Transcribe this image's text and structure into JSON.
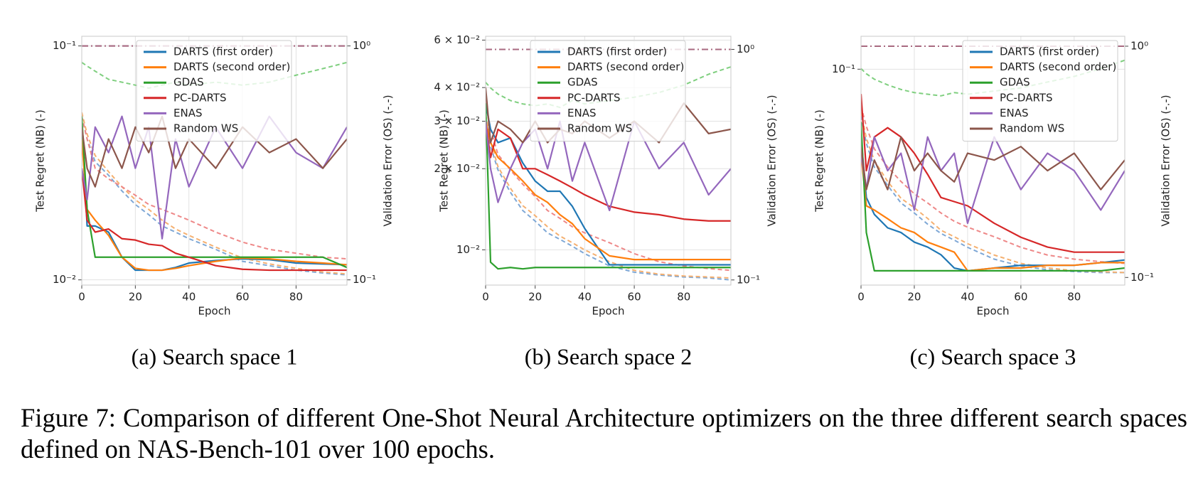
{
  "chart_data": [
    {
      "type": "line",
      "caption": "(a) Search space 1",
      "xlabel": "Epoch",
      "ylabel": "Test Regret (NB) (-)",
      "y2label": "Validation Error (OS) (-.-)",
      "x": [
        0,
        2,
        5,
        10,
        15,
        20,
        25,
        30,
        35,
        40,
        50,
        60,
        70,
        80,
        90,
        99
      ],
      "xlim": [
        0,
        99
      ],
      "xticks": [
        0,
        20,
        40,
        60,
        80
      ],
      "ylim": [
        0.0095,
        0.11
      ],
      "ylog": true,
      "yticks": [
        {
          "value": 0.1,
          "label": "10⁻¹"
        },
        {
          "value": 0.01,
          "label": "10⁻²"
        }
      ],
      "y2lim": [
        0.095,
        1.1
      ],
      "y2log": true,
      "y2ticks": [
        {
          "value": 1,
          "label": "10⁰"
        },
        {
          "value": 0.1,
          "label": "10⁻¹"
        }
      ],
      "grid": true,
      "legend": "upper right",
      "series": [
        {
          "name": "DARTS (first order)",
          "color": "#1f77b4",
          "values": [
            0.045,
            0.017,
            0.017,
            0.016,
            0.0125,
            0.011,
            0.011,
            0.011,
            0.0113,
            0.0118,
            0.0121,
            0.0123,
            0.0122,
            0.0118,
            0.0117,
            0.0116
          ]
        },
        {
          "name": "DARTS (second order)",
          "color": "#ff7f0e",
          "values": [
            0.04,
            0.02,
            0.018,
            0.0155,
            0.0125,
            0.0112,
            0.011,
            0.011,
            0.0112,
            0.0115,
            0.012,
            0.0124,
            0.0123,
            0.012,
            0.0118,
            0.0116
          ]
        },
        {
          "name": "GDAS",
          "color": "#2ca02c",
          "values": [
            0.05,
            0.02,
            0.0125,
            0.0125,
            0.0125,
            0.0125,
            0.0125,
            0.0125,
            0.0125,
            0.0125,
            0.0125,
            0.0125,
            0.0125,
            0.0125,
            0.0125,
            0.0113
          ]
        },
        {
          "name": "PC-DARTS",
          "color": "#d62728",
          "values": [
            0.03,
            0.018,
            0.016,
            0.0165,
            0.015,
            0.0148,
            0.0142,
            0.014,
            0.013,
            0.0125,
            0.0115,
            0.0111,
            0.011,
            0.011,
            0.011,
            0.011
          ]
        },
        {
          "name": "ENAS",
          "color": "#9467bd",
          "values": [
            0.03,
            0.022,
            0.045,
            0.035,
            0.05,
            0.03,
            0.045,
            0.015,
            0.04,
            0.025,
            0.045,
            0.03,
            0.05,
            0.035,
            0.03,
            0.045
          ]
        },
        {
          "name": "Random WS",
          "color": "#8c564b",
          "values": [
            0.045,
            0.03,
            0.025,
            0.04,
            0.03,
            0.045,
            0.035,
            0.05,
            0.03,
            0.04,
            0.03,
            0.045,
            0.035,
            0.04,
            0.03,
            0.04
          ]
        },
        {
          "name": "DARTS (first order)",
          "axis": "y2",
          "linestyle": "dashed",
          "color": "#7fa8d6",
          "values": [
            0.5,
            0.4,
            0.32,
            0.28,
            0.24,
            0.21,
            0.19,
            0.17,
            0.16,
            0.15,
            0.135,
            0.12,
            0.115,
            0.11,
            0.107,
            0.105
          ]
        },
        {
          "name": "DARTS (second order)",
          "axis": "y2",
          "linestyle": "dashed",
          "color": "#f5b070",
          "values": [
            0.52,
            0.42,
            0.34,
            0.29,
            0.25,
            0.22,
            0.2,
            0.18,
            0.165,
            0.155,
            0.138,
            0.124,
            0.117,
            0.112,
            0.108,
            0.106
          ]
        },
        {
          "name": "GDAS",
          "axis": "y2",
          "linestyle": "dashed",
          "color": "#7fcf7f",
          "values": [
            0.85,
            0.82,
            0.78,
            0.72,
            0.7,
            0.68,
            0.66,
            0.68,
            0.7,
            0.68,
            0.7,
            0.68,
            0.7,
            0.75,
            0.8,
            0.85
          ]
        },
        {
          "name": "PC-DARTS",
          "axis": "y2",
          "linestyle": "dashed",
          "color": "#ee8888",
          "values": [
            0.5,
            0.4,
            0.3,
            0.27,
            0.25,
            0.23,
            0.21,
            0.2,
            0.19,
            0.18,
            0.16,
            0.145,
            0.135,
            0.13,
            0.125,
            0.123
          ]
        },
        {
          "name": "ENAS",
          "axis": "y2",
          "linestyle": "dashdot",
          "color": "#a77bb0",
          "values": [
            1,
            1,
            1,
            1,
            1,
            1,
            1,
            1,
            1,
            1,
            1,
            1,
            1,
            1,
            1,
            1
          ]
        },
        {
          "name": "Random WS",
          "axis": "y2",
          "linestyle": "dashdot",
          "color": "#a86a80",
          "values": [
            1,
            1,
            1,
            1,
            1,
            1,
            1,
            1,
            1,
            1,
            1,
            1,
            1,
            1,
            1,
            1
          ]
        }
      ]
    },
    {
      "type": "line",
      "caption": "(b) Search space 2",
      "xlabel": "Epoch",
      "ylabel": "Test Regret (NB) (-)",
      "y2label": "Validation Error (OS) (-.-)",
      "x": [
        0,
        2,
        5,
        10,
        15,
        20,
        25,
        30,
        35,
        40,
        50,
        60,
        70,
        80,
        90,
        99
      ],
      "xlim": [
        0,
        99
      ],
      "xticks": [
        0,
        20,
        40,
        60,
        80
      ],
      "ylim": [
        0.0074,
        0.062
      ],
      "ylog": true,
      "yticks": [
        {
          "value": 0.06,
          "label": "6 × 10⁻²"
        },
        {
          "value": 0.04,
          "label": "4 × 10⁻²"
        },
        {
          "value": 0.03,
          "label": "3 × 10⁻²"
        },
        {
          "value": 0.02,
          "label": "2 × 10⁻²"
        },
        {
          "value": 0.01,
          "label": "10⁻²"
        }
      ],
      "y2lim": [
        0.095,
        1.14
      ],
      "y2log": true,
      "y2ticks": [
        {
          "value": 1,
          "label": "10⁰"
        },
        {
          "value": 0.1,
          "label": "10⁻¹"
        }
      ],
      "grid": true,
      "legend": "upper right",
      "series": [
        {
          "name": "DARTS (first order)",
          "color": "#1f77b4",
          "values": [
            0.035,
            0.028,
            0.025,
            0.026,
            0.021,
            0.018,
            0.0165,
            0.0165,
            0.0145,
            0.012,
            0.0088,
            0.0088,
            0.0088,
            0.0088,
            0.0088,
            0.0088
          ]
        },
        {
          "name": "DARTS (second order)",
          "color": "#ff7f0e",
          "values": [
            0.03,
            0.025,
            0.022,
            0.02,
            0.018,
            0.016,
            0.015,
            0.0135,
            0.0125,
            0.011,
            0.0095,
            0.0092,
            0.0092,
            0.0092,
            0.0092,
            0.0092
          ]
        },
        {
          "name": "GDAS",
          "color": "#2ca02c",
          "values": [
            0.035,
            0.009,
            0.0085,
            0.0086,
            0.0085,
            0.0086,
            0.0086,
            0.0086,
            0.0086,
            0.0086,
            0.0086,
            0.0086,
            0.0086,
            0.0086,
            0.0086,
            0.0086
          ]
        },
        {
          "name": "PC-DARTS",
          "color": "#d62728",
          "values": [
            0.03,
            0.022,
            0.028,
            0.026,
            0.02,
            0.02,
            0.019,
            0.018,
            0.017,
            0.016,
            0.0145,
            0.0138,
            0.0135,
            0.013,
            0.0128,
            0.0128
          ]
        },
        {
          "name": "ENAS",
          "color": "#9467bd",
          "values": [
            0.03,
            0.02,
            0.015,
            0.02,
            0.025,
            0.028,
            0.02,
            0.03,
            0.018,
            0.025,
            0.014,
            0.03,
            0.02,
            0.025,
            0.016,
            0.02
          ]
        },
        {
          "name": "Random WS",
          "color": "#8c564b",
          "values": [
            0.04,
            0.025,
            0.03,
            0.028,
            0.025,
            0.03,
            0.025,
            0.028,
            0.027,
            0.03,
            0.026,
            0.03,
            0.025,
            0.035,
            0.027,
            0.028
          ]
        },
        {
          "name": "DARTS (first order)",
          "axis": "y2",
          "linestyle": "dashed",
          "color": "#7fa8d6",
          "values": [
            0.5,
            0.38,
            0.3,
            0.24,
            0.2,
            0.18,
            0.16,
            0.15,
            0.14,
            0.13,
            0.115,
            0.108,
            0.105,
            0.103,
            0.102,
            0.1
          ]
        },
        {
          "name": "DARTS (second order)",
          "axis": "y2",
          "linestyle": "dashed",
          "color": "#f5b070",
          "values": [
            0.52,
            0.4,
            0.31,
            0.25,
            0.21,
            0.19,
            0.17,
            0.155,
            0.145,
            0.135,
            0.12,
            0.11,
            0.106,
            0.104,
            0.103,
            0.102
          ]
        },
        {
          "name": "GDAS",
          "axis": "y2",
          "linestyle": "dashed",
          "color": "#7fcf7f",
          "values": [
            0.72,
            0.68,
            0.64,
            0.6,
            0.58,
            0.57,
            0.58,
            0.56,
            0.6,
            0.58,
            0.6,
            0.62,
            0.65,
            0.7,
            0.78,
            0.84
          ]
        },
        {
          "name": "PC-DARTS",
          "axis": "y2",
          "linestyle": "dashed",
          "color": "#ee8888",
          "values": [
            0.6,
            0.45,
            0.35,
            0.3,
            0.26,
            0.23,
            0.2,
            0.185,
            0.17,
            0.16,
            0.145,
            0.13,
            0.12,
            0.115,
            0.112,
            0.11
          ]
        },
        {
          "name": "ENAS",
          "axis": "y2",
          "linestyle": "dashdot",
          "color": "#a77bb0",
          "values": [
            1,
            1,
            1,
            1,
            1,
            1,
            1,
            1,
            1,
            1,
            1,
            1,
            1,
            1,
            1,
            1
          ]
        },
        {
          "name": "Random WS",
          "axis": "y2",
          "linestyle": "dashdot",
          "color": "#a86a80",
          "values": [
            1,
            1,
            1,
            1,
            1,
            1,
            1,
            1,
            1,
            1,
            1,
            1,
            1,
            1,
            1,
            1
          ]
        }
      ]
    },
    {
      "type": "line",
      "caption": "(c) Search space 3",
      "xlabel": "Epoch",
      "ylabel": "Test Regret (NB) (-)",
      "y2label": "Validation Error (OS) (-.-)",
      "x": [
        0,
        2,
        5,
        10,
        15,
        20,
        25,
        30,
        35,
        40,
        50,
        60,
        70,
        80,
        90,
        99
      ],
      "xlim": [
        0,
        99
      ],
      "xticks": [
        0,
        20,
        40,
        60,
        80
      ],
      "ylim": [
        0.04,
        0.115
      ],
      "ylog": true,
      "yticks": [
        {
          "value": 0.1,
          "label": "10⁻¹"
        }
      ],
      "y2lim": [
        0.0927,
        1.104
      ],
      "y2log": true,
      "y2ticks": [
        {
          "value": 1,
          "label": "10⁰"
        },
        {
          "value": 0.1,
          "label": "10⁻¹"
        }
      ],
      "grid": true,
      "legend": "upper right",
      "series": [
        {
          "name": "DARTS (first order)",
          "color": "#1f77b4",
          "values": [
            0.075,
            0.058,
            0.054,
            0.051,
            0.05,
            0.048,
            0.047,
            0.0455,
            0.043,
            0.0425,
            0.043,
            0.0435,
            0.0435,
            0.0435,
            0.044,
            0.0445
          ]
        },
        {
          "name": "DARTS (second order)",
          "color": "#ff7f0e",
          "values": [
            0.07,
            0.056,
            0.055,
            0.053,
            0.051,
            0.05,
            0.048,
            0.047,
            0.046,
            0.0425,
            0.043,
            0.043,
            0.0435,
            0.0435,
            0.044,
            0.044
          ]
        },
        {
          "name": "GDAS",
          "color": "#2ca02c",
          "values": [
            0.08,
            0.05,
            0.0425,
            0.0425,
            0.0425,
            0.0425,
            0.0425,
            0.0425,
            0.0425,
            0.0425,
            0.0425,
            0.0425,
            0.0425,
            0.0425,
            0.0425,
            0.043
          ]
        },
        {
          "name": "PC-DARTS",
          "color": "#d62728",
          "values": [
            0.09,
            0.065,
            0.075,
            0.078,
            0.075,
            0.07,
            0.064,
            0.058,
            0.057,
            0.056,
            0.052,
            0.049,
            0.047,
            0.046,
            0.046,
            0.046
          ]
        },
        {
          "name": "ENAS",
          "color": "#9467bd",
          "values": [
            0.07,
            0.06,
            0.075,
            0.065,
            0.07,
            0.055,
            0.075,
            0.065,
            0.07,
            0.052,
            0.075,
            0.06,
            0.07,
            0.065,
            0.055,
            0.065
          ]
        },
        {
          "name": "Random WS",
          "color": "#8c564b",
          "values": [
            0.072,
            0.06,
            0.068,
            0.06,
            0.075,
            0.065,
            0.07,
            0.065,
            0.062,
            0.07,
            0.068,
            0.072,
            0.065,
            0.07,
            0.06,
            0.068
          ]
        },
        {
          "name": "DARTS (first order)",
          "axis": "y2",
          "linestyle": "dashed",
          "color": "#7fa8d6",
          "values": [
            0.5,
            0.38,
            0.3,
            0.25,
            0.21,
            0.19,
            0.17,
            0.155,
            0.145,
            0.135,
            0.12,
            0.112,
            0.108,
            0.106,
            0.105,
            0.105
          ]
        },
        {
          "name": "DARTS (second order)",
          "axis": "y2",
          "linestyle": "dashed",
          "color": "#f5b070",
          "values": [
            0.52,
            0.4,
            0.32,
            0.26,
            0.22,
            0.2,
            0.18,
            0.16,
            0.15,
            0.14,
            0.125,
            0.115,
            0.11,
            0.107,
            0.106,
            0.105
          ]
        },
        {
          "name": "GDAS",
          "axis": "y2",
          "linestyle": "dashed",
          "color": "#7fcf7f",
          "values": [
            0.8,
            0.76,
            0.72,
            0.68,
            0.65,
            0.63,
            0.62,
            0.61,
            0.63,
            0.62,
            0.64,
            0.66,
            0.7,
            0.74,
            0.8,
            0.87
          ]
        },
        {
          "name": "PC-DARTS",
          "axis": "y2",
          "linestyle": "dashed",
          "color": "#ee8888",
          "values": [
            0.55,
            0.45,
            0.36,
            0.3,
            0.26,
            0.23,
            0.21,
            0.19,
            0.175,
            0.165,
            0.15,
            0.135,
            0.125,
            0.12,
            0.117,
            0.115
          ]
        },
        {
          "name": "ENAS",
          "axis": "y2",
          "linestyle": "dashdot",
          "color": "#a77bb0",
          "values": [
            1,
            1,
            1,
            1,
            1,
            1,
            1,
            1,
            1,
            1,
            1,
            1,
            1,
            1,
            1,
            1
          ]
        },
        {
          "name": "Random WS",
          "axis": "y2",
          "linestyle": "dashdot",
          "color": "#a86a80",
          "values": [
            1,
            1,
            1,
            1,
            1,
            1,
            1,
            1,
            1,
            1,
            1,
            1,
            1,
            1,
            1,
            1
          ]
        }
      ]
    }
  ],
  "figure_caption": "Figure 7: Comparison of different One-Shot Neural Architecture optimizers on the three different search spaces defined on NAS-Bench-101 over 100 epochs."
}
